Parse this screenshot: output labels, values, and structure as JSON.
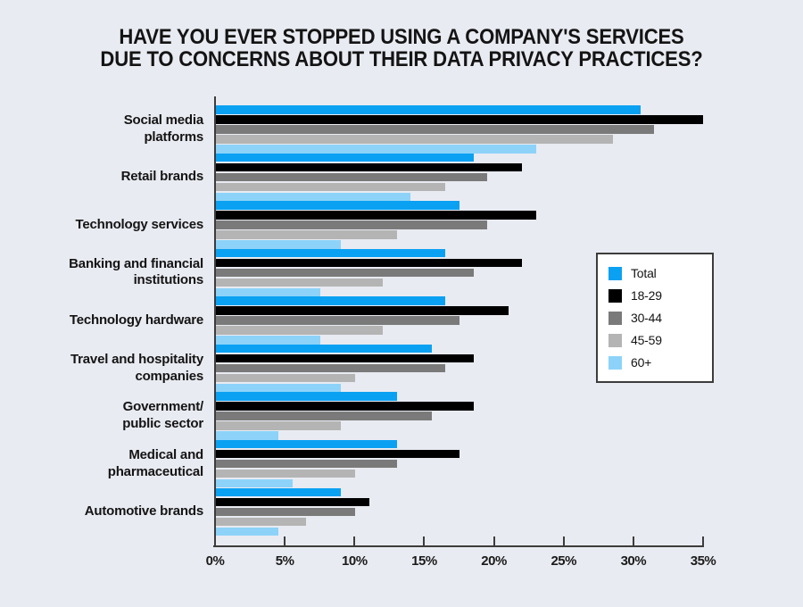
{
  "title": {
    "line1": "HAVE YOU EVER STOPPED USING A COMPANY'S SERVICES",
    "line2": "DUE TO CONCERNS ABOUT THEIR DATA PRIVACY PRACTICES?"
  },
  "chart_data": {
    "type": "bar",
    "orientation": "horizontal",
    "title": "HAVE YOU EVER STOPPED USING A COMPANY'S SERVICES DUE TO CONCERNS ABOUT THEIR DATA PRIVACY PRACTICES?",
    "categories": [
      "Social media\nplatforms",
      "Retail brands",
      "Technology services",
      "Banking and financial\ninstitutions",
      "Technology hardware",
      "Travel and hospitality\ncompanies",
      "Government/\npublic sector",
      "Medical and\npharmaceutical",
      "Automotive brands"
    ],
    "series": [
      {
        "name": "Total",
        "color": "#0BA1F2",
        "values": [
          30.5,
          18.5,
          17.5,
          16.5,
          16.5,
          15.5,
          13,
          13,
          9
        ]
      },
      {
        "name": "18-29",
        "color": "#000000",
        "values": [
          35,
          22,
          23,
          22,
          21,
          18.5,
          18.5,
          17.5,
          11
        ]
      },
      {
        "name": "30-44",
        "color": "#7A7A7A",
        "values": [
          31.5,
          19.5,
          19.5,
          18.5,
          17.5,
          16.5,
          15.5,
          13,
          10
        ]
      },
      {
        "name": "45-59",
        "color": "#B4B4B4",
        "values": [
          28.5,
          16.5,
          13,
          12,
          12,
          10,
          9,
          10,
          6.5
        ]
      },
      {
        "name": "60+",
        "color": "#8DD3F9",
        "values": [
          23,
          14,
          9,
          7.5,
          7.5,
          9,
          4.5,
          5.5,
          4.5
        ]
      }
    ],
    "x_ticks": [
      "0%",
      "5%",
      "10%",
      "15%",
      "20%",
      "25%",
      "30%",
      "35%"
    ],
    "xlim": [
      0,
      35
    ],
    "xlabel": "",
    "ylabel": "",
    "grid": false,
    "legend_position": "center-right",
    "colors": {
      "background": "#E9EBF2",
      "axis": "#3c3c3c",
      "text": "#141414",
      "legend_background": "#ffffff"
    }
  }
}
